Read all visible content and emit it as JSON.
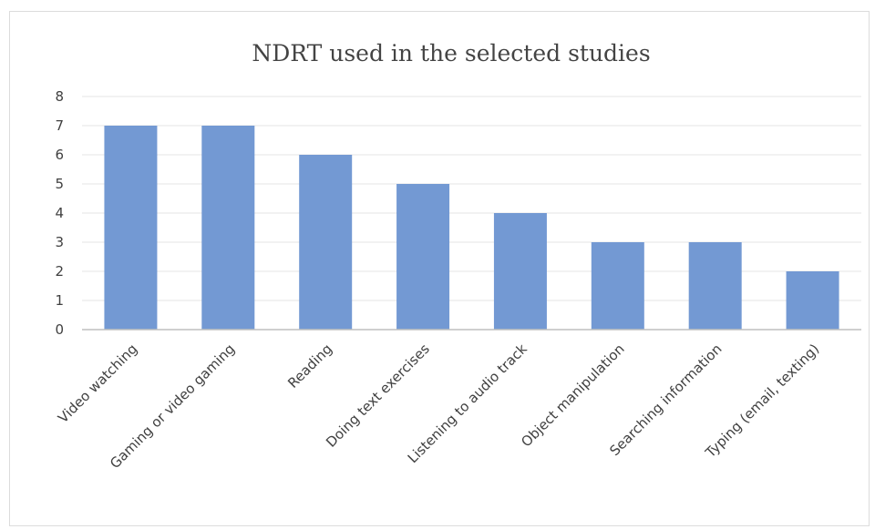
{
  "chart_data": {
    "type": "bar",
    "title": "NDRT used in  the selected studies",
    "categories": [
      "Video watching",
      "Gaming or video gaming",
      "Reading",
      "Doing text exercises",
      "Listening to audio track",
      "Object manipulation",
      "Searching information",
      "Typing (email, texting)"
    ],
    "values": [
      7,
      7,
      6,
      5,
      4,
      3,
      3,
      2
    ],
    "ylim": [
      0,
      8
    ],
    "yticks": [
      "0",
      "1",
      "2",
      "3",
      "4",
      "5",
      "6",
      "7",
      "8"
    ],
    "grid": true,
    "legend": "none",
    "bar_color": "#7399d3"
  }
}
